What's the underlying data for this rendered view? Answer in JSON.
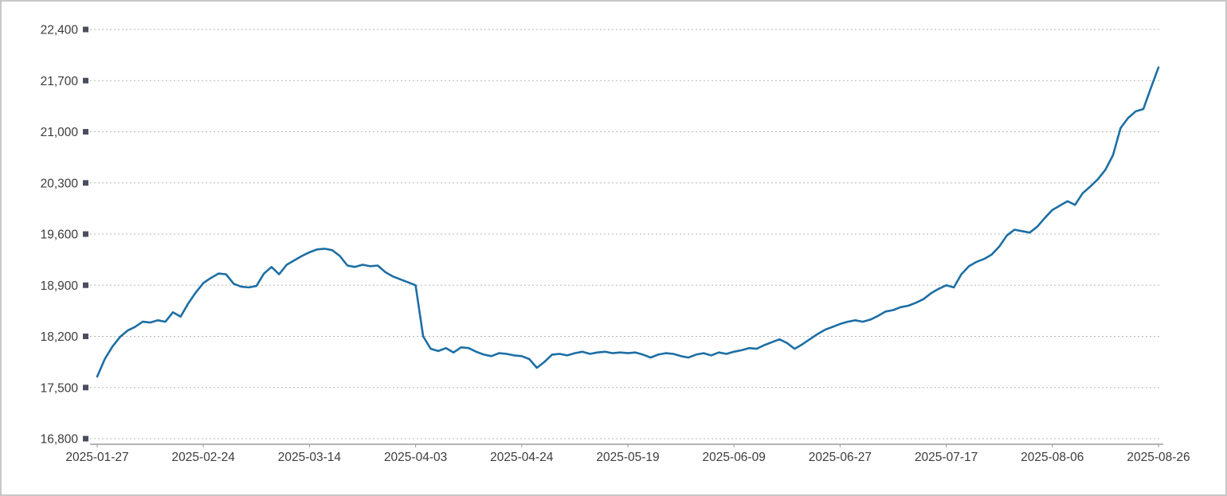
{
  "colors": {
    "line": "#1d6fa5",
    "grid": "#b5b5b5",
    "axis": "#9b9b9b",
    "text": "#3c3c3c",
    "tick_marker": "#4a4f60",
    "border": "#c8c8c8",
    "background": "#ffffff"
  },
  "chart_data": {
    "type": "line",
    "title": "",
    "xlabel": "",
    "ylabel": "",
    "legend": "none",
    "grid": "dotted-horizontal",
    "ylim": [
      16800,
      22400
    ],
    "y_ticks": [
      16800,
      17500,
      18200,
      18900,
      19600,
      20300,
      21000,
      21700,
      22400
    ],
    "y_tick_labels": [
      "16,800",
      "17,500",
      "18,200",
      "18,900",
      "19,600",
      "20,300",
      "21,000",
      "21,700",
      "22,400"
    ],
    "x_tick_labels": [
      "2025-01-27",
      "2025-02-24",
      "2025-03-14",
      "2025-04-03",
      "2025-04-24",
      "2025-05-19",
      "2025-06-09",
      "2025-06-27",
      "2025-07-17",
      "2025-08-06",
      "2025-08-26"
    ],
    "x_tick_indices": [
      0,
      14,
      28,
      42,
      56,
      70,
      84,
      98,
      112,
      126,
      140
    ],
    "values": [
      17650,
      17890,
      18060,
      18190,
      18280,
      18330,
      18400,
      18390,
      18420,
      18400,
      18530,
      18470,
      18650,
      18800,
      18930,
      19000,
      19060,
      19050,
      18920,
      18880,
      18870,
      18890,
      19060,
      19150,
      19050,
      19180,
      19240,
      19300,
      19350,
      19390,
      19400,
      19380,
      19300,
      19170,
      19150,
      19180,
      19160,
      19170,
      19080,
      19020,
      18980,
      18940,
      18900,
      18200,
      18030,
      18000,
      18040,
      17980,
      18050,
      18040,
      17990,
      17950,
      17930,
      17970,
      17960,
      17940,
      17930,
      17890,
      17770,
      17850,
      17950,
      17960,
      17940,
      17970,
      17990,
      17960,
      17980,
      17990,
      17970,
      17980,
      17970,
      17980,
      17950,
      17910,
      17950,
      17970,
      17960,
      17930,
      17910,
      17950,
      17970,
      17940,
      17980,
      17960,
      17990,
      18010,
      18040,
      18030,
      18080,
      18120,
      18160,
      18110,
      18030,
      18090,
      18160,
      18230,
      18290,
      18330,
      18370,
      18400,
      18420,
      18400,
      18430,
      18480,
      18540,
      18560,
      18600,
      18620,
      18660,
      18710,
      18790,
      18850,
      18900,
      18870,
      19050,
      19160,
      19220,
      19260,
      19320,
      19430,
      19580,
      19660,
      19640,
      19620,
      19700,
      19820,
      19930,
      19990,
      20050,
      20000,
      20160,
      20250,
      20350,
      20480,
      20680,
      21050,
      21190,
      21280,
      21310,
      21600,
      21880
    ]
  }
}
